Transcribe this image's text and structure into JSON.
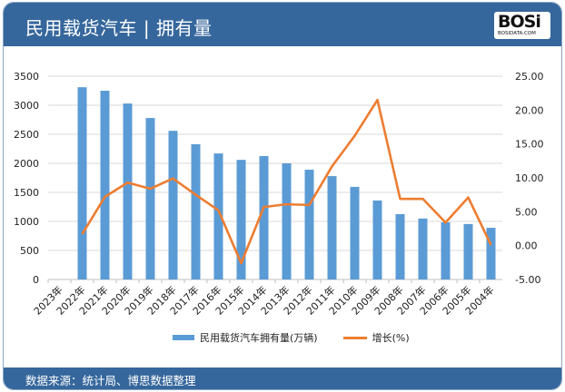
{
  "header": {
    "title": "民用载货汽车 | 拥有量",
    "logo_text": "BOSi",
    "logo_subtext": "BOSIDATA.COM"
  },
  "footer": {
    "source": "数据来源：统计局、博思数据整理"
  },
  "colors": {
    "header": "#36679c",
    "bar": "#5b9bd5",
    "line": "#ed7d31"
  },
  "chart_data": {
    "type": "bar+line",
    "categories": [
      "2023年",
      "2022年",
      "2021年",
      "2020年",
      "2019年",
      "2018年",
      "2017年",
      "2016年",
      "2015年",
      "2014年",
      "2013年",
      "2012年",
      "2011年",
      "2010年",
      "2009年",
      "2008年",
      "2007年",
      "2006年",
      "2005年",
      "2004年"
    ],
    "series": [
      {
        "name": "民用载货汽车拥有量(万辆)",
        "type": "bar",
        "axis": "left",
        "values": [
          null,
          3310,
          3250,
          3030,
          2780,
          2560,
          2330,
          2170,
          2060,
          2125,
          2000,
          1890,
          1780,
          1595,
          1360,
          1125,
          1050,
          985,
          955,
          890
        ]
      },
      {
        "name": "增长(%)",
        "type": "line",
        "axis": "right",
        "values": [
          null,
          1.7,
          7.2,
          9.3,
          8.4,
          9.9,
          7.5,
          5.2,
          -2.6,
          5.7,
          6.1,
          6.0,
          11.7,
          16.2,
          21.5,
          6.9,
          6.9,
          3.4,
          7.1,
          0.1
        ]
      }
    ],
    "y_left": {
      "min": 0,
      "max": 3500,
      "ticks": [
        "0",
        "500",
        "1000",
        "1500",
        "2000",
        "2500",
        "3000",
        "3500"
      ]
    },
    "y_right": {
      "min": -5,
      "max": 25,
      "ticks": [
        "-5.00",
        "0.00",
        "5.00",
        "10.00",
        "15.00",
        "20.00",
        "25.00"
      ]
    },
    "grid": true,
    "legend": "bottom"
  }
}
